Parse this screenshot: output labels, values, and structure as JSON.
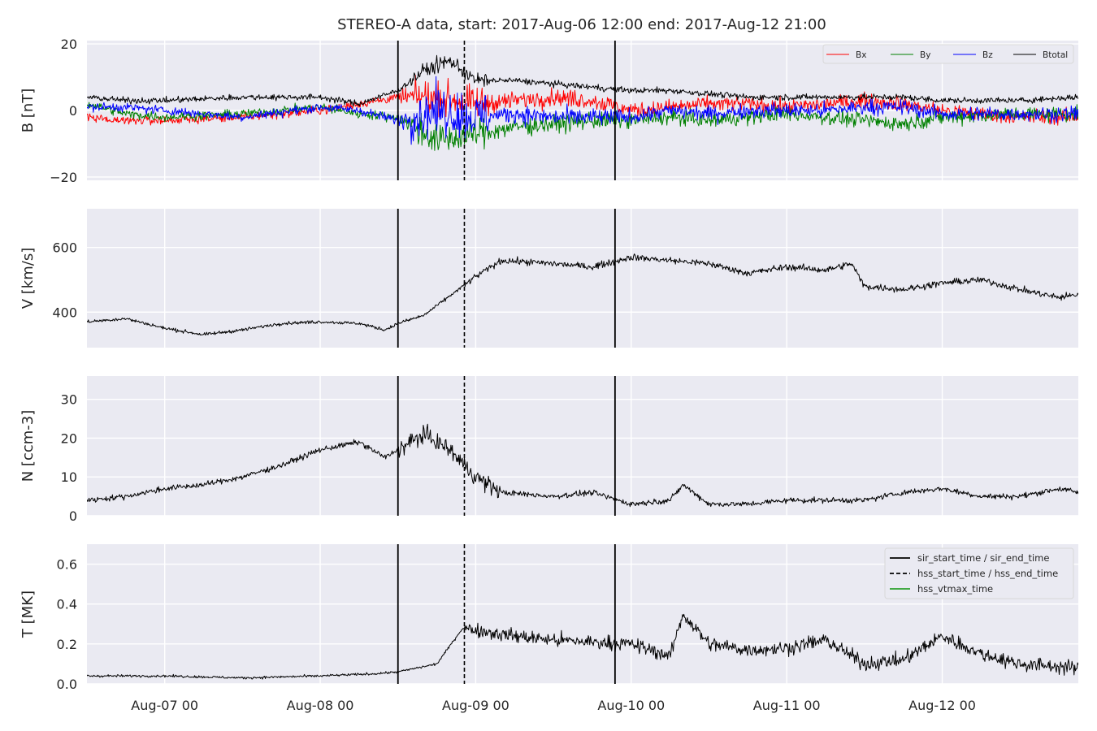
{
  "chart_data": {
    "type": "line",
    "title": "STEREO-A data, start: 2017-Aug-06 12:00  end: 2017-Aug-12 21:00",
    "x_range": [
      "2017-08-06 12:00",
      "2017-08-12 21:00"
    ],
    "x_ticks": [
      {
        "t": "2017-08-07 00:00",
        "label": "Aug-07 00"
      },
      {
        "t": "2017-08-08 00:00",
        "label": "Aug-08 00"
      },
      {
        "t": "2017-08-09 00:00",
        "label": "Aug-09 00"
      },
      {
        "t": "2017-08-10 00:00",
        "label": "Aug-10 00"
      },
      {
        "t": "2017-08-11 00:00",
        "label": "Aug-11 00"
      },
      {
        "t": "2017-08-12 00:00",
        "label": "Aug-12 00"
      }
    ],
    "grid": true,
    "event_lines": [
      {
        "name": "sir_start_time / sir_end_time",
        "style": "solid",
        "times": [
          "2017-08-08 12:00",
          "2017-08-09 21:30"
        ]
      },
      {
        "name": "hss_start_time / hss_end_time",
        "style": "dashed",
        "times": [
          "2017-08-08 22:15"
        ]
      },
      {
        "name": "hss_vtmax_time",
        "style": "solid",
        "color": "#2ca02c",
        "times": []
      }
    ],
    "panels": [
      {
        "id": "B",
        "ylabel": "B [nT]",
        "ylim": [
          -21,
          21
        ],
        "yticks": [
          -20,
          0,
          20
        ],
        "ytick_labels": [
          "−20",
          "0",
          "20"
        ],
        "legend": {
          "placement": "top-right",
          "columns": 4,
          "entries": [
            "Bx",
            "By",
            "Bz",
            "Btotal"
          ]
        },
        "series": [
          {
            "name": "Bx",
            "color": "#ff0000",
            "points": [
              [
                "2017-08-06 12:00",
                -2
              ],
              [
                "2017-08-06 18:00",
                -3
              ],
              [
                "2017-08-07 00:00",
                -3
              ],
              [
                "2017-08-07 12:00",
                -2
              ],
              [
                "2017-08-08 00:00",
                0
              ],
              [
                "2017-08-08 06:00",
                2
              ],
              [
                "2017-08-08 12:00",
                4
              ],
              [
                "2017-08-08 18:00",
                4
              ],
              [
                "2017-08-09 00:00",
                2
              ],
              [
                "2017-08-09 06:00",
                3
              ],
              [
                "2017-08-09 12:00",
                4
              ],
              [
                "2017-08-09 18:00",
                3
              ],
              [
                "2017-08-10 00:00",
                0
              ],
              [
                "2017-08-10 06:00",
                1
              ],
              [
                "2017-08-10 12:00",
                2
              ],
              [
                "2017-08-10 18:00",
                2
              ],
              [
                "2017-08-11 00:00",
                1
              ],
              [
                "2017-08-11 06:00",
                2
              ],
              [
                "2017-08-11 12:00",
                3
              ],
              [
                "2017-08-11 18:00",
                2
              ],
              [
                "2017-08-12 00:00",
                0
              ],
              [
                "2017-08-12 12:00",
                -2
              ],
              [
                "2017-08-12 21:00",
                -2
              ]
            ]
          },
          {
            "name": "By",
            "color": "#008000",
            "points": [
              [
                "2017-08-06 12:00",
                2
              ],
              [
                "2017-08-06 18:00",
                -1
              ],
              [
                "2017-08-07 00:00",
                -2
              ],
              [
                "2017-08-07 12:00",
                -1
              ],
              [
                "2017-08-08 00:00",
                1
              ],
              [
                "2017-08-08 06:00",
                -1
              ],
              [
                "2017-08-08 12:00",
                -2
              ],
              [
                "2017-08-08 18:00",
                -9
              ],
              [
                "2017-08-09 00:00",
                -7
              ],
              [
                "2017-08-09 06:00",
                -5
              ],
              [
                "2017-08-09 12:00",
                -4
              ],
              [
                "2017-08-09 18:00",
                -3
              ],
              [
                "2017-08-10 00:00",
                -3
              ],
              [
                "2017-08-10 06:00",
                -2
              ],
              [
                "2017-08-10 12:00",
                -3
              ],
              [
                "2017-08-10 18:00",
                -2
              ],
              [
                "2017-08-11 00:00",
                -1
              ],
              [
                "2017-08-11 06:00",
                -2
              ],
              [
                "2017-08-11 12:00",
                -3
              ],
              [
                "2017-08-11 18:00",
                -4
              ],
              [
                "2017-08-12 00:00",
                -2
              ],
              [
                "2017-08-12 12:00",
                -1
              ],
              [
                "2017-08-12 21:00",
                -1
              ]
            ]
          },
          {
            "name": "Bz",
            "color": "#0000ff",
            "points": [
              [
                "2017-08-06 12:00",
                1
              ],
              [
                "2017-08-06 18:00",
                1
              ],
              [
                "2017-08-07 00:00",
                0
              ],
              [
                "2017-08-07 12:00",
                -2
              ],
              [
                "2017-08-08 00:00",
                1
              ],
              [
                "2017-08-08 06:00",
                0
              ],
              [
                "2017-08-08 12:00",
                -3
              ],
              [
                "2017-08-08 18:00",
                0
              ],
              [
                "2017-08-09 00:00",
                -2
              ],
              [
                "2017-08-09 06:00",
                -1
              ],
              [
                "2017-08-09 12:00",
                -2
              ],
              [
                "2017-08-09 18:00",
                -2
              ],
              [
                "2017-08-10 00:00",
                -2
              ],
              [
                "2017-08-10 06:00",
                0
              ],
              [
                "2017-08-10 12:00",
                -1
              ],
              [
                "2017-08-10 18:00",
                0
              ],
              [
                "2017-08-11 00:00",
                0
              ],
              [
                "2017-08-11 06:00",
                0
              ],
              [
                "2017-08-11 12:00",
                1
              ],
              [
                "2017-08-11 18:00",
                1
              ],
              [
                "2017-08-12 00:00",
                -1
              ],
              [
                "2017-08-12 12:00",
                -1
              ],
              [
                "2017-08-12 21:00",
                -1
              ]
            ]
          },
          {
            "name": "Btotal",
            "color": "#000000",
            "points": [
              [
                "2017-08-06 12:00",
                4
              ],
              [
                "2017-08-06 18:00",
                3
              ],
              [
                "2017-08-07 00:00",
                3
              ],
              [
                "2017-08-07 12:00",
                4
              ],
              [
                "2017-08-08 00:00",
                4
              ],
              [
                "2017-08-08 06:00",
                2
              ],
              [
                "2017-08-08 12:00",
                6
              ],
              [
                "2017-08-08 16:00",
                12
              ],
              [
                "2017-08-08 20:00",
                15
              ],
              [
                "2017-08-09 00:00",
                9
              ],
              [
                "2017-08-09 06:00",
                9
              ],
              [
                "2017-08-09 12:00",
                8
              ],
              [
                "2017-08-09 18:00",
                7
              ],
              [
                "2017-08-10 00:00",
                6
              ],
              [
                "2017-08-10 06:00",
                6
              ],
              [
                "2017-08-10 12:00",
                5
              ],
              [
                "2017-08-10 18:00",
                4
              ],
              [
                "2017-08-11 00:00",
                4
              ],
              [
                "2017-08-11 06:00",
                4
              ],
              [
                "2017-08-11 12:00",
                4
              ],
              [
                "2017-08-11 18:00",
                4
              ],
              [
                "2017-08-12 00:00",
                3
              ],
              [
                "2017-08-12 12:00",
                3
              ],
              [
                "2017-08-12 21:00",
                4
              ]
            ]
          }
        ]
      },
      {
        "id": "V",
        "ylabel": "V [km/s]",
        "ylim": [
          290,
          720
        ],
        "yticks": [
          400,
          600
        ],
        "ytick_labels": [
          "400",
          "600"
        ],
        "series": [
          {
            "name": "V",
            "color": "#000000",
            "points": [
              [
                "2017-08-06 12:00",
                370
              ],
              [
                "2017-08-06 18:00",
                380
              ],
              [
                "2017-08-07 00:00",
                350
              ],
              [
                "2017-08-07 06:00",
                330
              ],
              [
                "2017-08-07 12:00",
                345
              ],
              [
                "2017-08-07 18:00",
                365
              ],
              [
                "2017-08-08 00:00",
                370
              ],
              [
                "2017-08-08 06:00",
                365
              ],
              [
                "2017-08-08 10:00",
                345
              ],
              [
                "2017-08-08 12:00",
                365
              ],
              [
                "2017-08-08 16:00",
                390
              ],
              [
                "2017-08-08 20:00",
                450
              ],
              [
                "2017-08-09 00:00",
                510
              ],
              [
                "2017-08-09 04:00",
                560
              ],
              [
                "2017-08-09 12:00",
                550
              ],
              [
                "2017-08-09 18:00",
                540
              ],
              [
                "2017-08-10 00:00",
                570
              ],
              [
                "2017-08-10 06:00",
                560
              ],
              [
                "2017-08-10 12:00",
                550
              ],
              [
                "2017-08-10 18:00",
                520
              ],
              [
                "2017-08-11 00:00",
                540
              ],
              [
                "2017-08-11 06:00",
                530
              ],
              [
                "2017-08-11 10:00",
                550
              ],
              [
                "2017-08-11 12:00",
                480
              ],
              [
                "2017-08-11 18:00",
                470
              ],
              [
                "2017-08-12 00:00",
                490
              ],
              [
                "2017-08-12 06:00",
                500
              ],
              [
                "2017-08-12 12:00",
                470
              ],
              [
                "2017-08-12 18:00",
                445
              ],
              [
                "2017-08-12 21:00",
                455
              ]
            ]
          }
        ]
      },
      {
        "id": "N",
        "ylabel": "N [ccm-3]",
        "ylim": [
          0,
          36
        ],
        "yticks": [
          0,
          10,
          20,
          30
        ],
        "ytick_labels": [
          "0",
          "10",
          "20",
          "30"
        ],
        "series": [
          {
            "name": "N",
            "color": "#000000",
            "points": [
              [
                "2017-08-06 12:00",
                4
              ],
              [
                "2017-08-06 18:00",
                5
              ],
              [
                "2017-08-07 00:00",
                7
              ],
              [
                "2017-08-07 06:00",
                8
              ],
              [
                "2017-08-07 12:00",
                10
              ],
              [
                "2017-08-07 18:00",
                13
              ],
              [
                "2017-08-08 00:00",
                17
              ],
              [
                "2017-08-08 06:00",
                19
              ],
              [
                "2017-08-08 10:00",
                15
              ],
              [
                "2017-08-08 12:00",
                17
              ],
              [
                "2017-08-08 16:00",
                21
              ],
              [
                "2017-08-08 20:00",
                17
              ],
              [
                "2017-08-09 00:00",
                10
              ],
              [
                "2017-08-09 04:00",
                6
              ],
              [
                "2017-08-09 12:00",
                5
              ],
              [
                "2017-08-09 18:00",
                6
              ],
              [
                "2017-08-10 00:00",
                3
              ],
              [
                "2017-08-10 06:00",
                4
              ],
              [
                "2017-08-10 08:00",
                8
              ],
              [
                "2017-08-10 12:00",
                3
              ],
              [
                "2017-08-10 18:00",
                3
              ],
              [
                "2017-08-11 00:00",
                4
              ],
              [
                "2017-08-11 06:00",
                4
              ],
              [
                "2017-08-11 12:00",
                4
              ],
              [
                "2017-08-11 18:00",
                6
              ],
              [
                "2017-08-12 00:00",
                7
              ],
              [
                "2017-08-12 06:00",
                5
              ],
              [
                "2017-08-12 12:00",
                5
              ],
              [
                "2017-08-12 18:00",
                7
              ],
              [
                "2017-08-12 21:00",
                6
              ]
            ]
          }
        ]
      },
      {
        "id": "T",
        "ylabel": "T [MK]",
        "ylim": [
          0,
          0.7
        ],
        "yticks": [
          0.0,
          0.2,
          0.4,
          0.6
        ],
        "ytick_labels": [
          "0.0",
          "0.2",
          "0.4",
          "0.6"
        ],
        "legend": {
          "placement": "top-right",
          "entries": [
            "sir_start_time / sir_end_time",
            "hss_start_time / hss_end_time",
            "hss_vtmax_time"
          ]
        },
        "series": [
          {
            "name": "T",
            "color": "#000000",
            "points": [
              [
                "2017-08-06 12:00",
                0.04
              ],
              [
                "2017-08-07 00:00",
                0.04
              ],
              [
                "2017-08-07 12:00",
                0.03
              ],
              [
                "2017-08-08 00:00",
                0.04
              ],
              [
                "2017-08-08 08:00",
                0.05
              ],
              [
                "2017-08-08 12:00",
                0.06
              ],
              [
                "2017-08-08 18:00",
                0.1
              ],
              [
                "2017-08-08 22:00",
                0.28
              ],
              [
                "2017-08-09 00:00",
                0.27
              ],
              [
                "2017-08-09 06:00",
                0.24
              ],
              [
                "2017-08-09 12:00",
                0.22
              ],
              [
                "2017-08-09 18:00",
                0.21
              ],
              [
                "2017-08-10 00:00",
                0.2
              ],
              [
                "2017-08-10 06:00",
                0.14
              ],
              [
                "2017-08-10 08:00",
                0.35
              ],
              [
                "2017-08-10 12:00",
                0.2
              ],
              [
                "2017-08-10 18:00",
                0.17
              ],
              [
                "2017-08-11 00:00",
                0.18
              ],
              [
                "2017-08-11 06:00",
                0.22
              ],
              [
                "2017-08-11 12:00",
                0.1
              ],
              [
                "2017-08-11 18:00",
                0.12
              ],
              [
                "2017-08-12 00:00",
                0.24
              ],
              [
                "2017-08-12 06:00",
                0.15
              ],
              [
                "2017-08-12 12:00",
                0.1
              ],
              [
                "2017-08-12 21:00",
                0.08
              ]
            ]
          }
        ]
      }
    ]
  }
}
